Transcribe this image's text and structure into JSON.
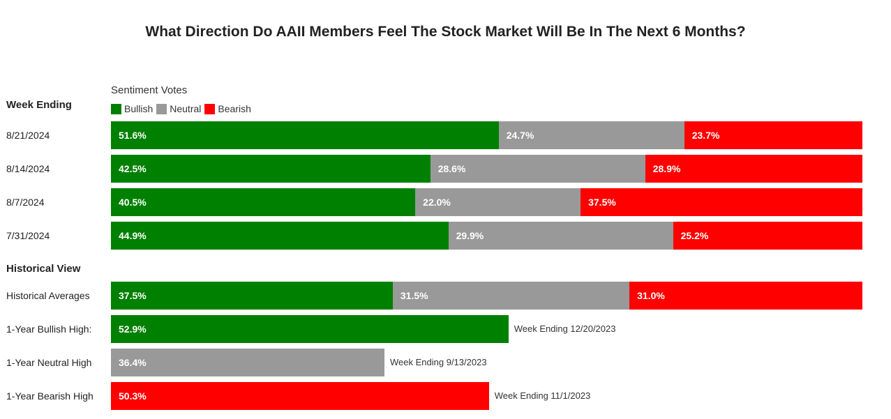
{
  "title": "What Direction Do AAII Members Feel The Stock Market Will Be In The Next 6 Months?",
  "section_week": "Week Ending",
  "section_hist": "Historical View",
  "legend": {
    "title": "Sentiment Votes",
    "items": [
      "Bullish",
      "Neutral",
      "Bearish"
    ]
  },
  "colors": {
    "bullish": "#008000",
    "neutral": "#999999",
    "bearish": "#ff0000"
  },
  "chart_data": {
    "type": "bar",
    "orientation": "horizontal-stacked",
    "title": "What Direction Do AAII Members Feel The Stock Market Will Be In The Next 6 Months?",
    "series_names": [
      "Bullish",
      "Neutral",
      "Bearish"
    ],
    "weekly": [
      {
        "label": "8/21/2024",
        "values": [
          51.6,
          24.7,
          23.7
        ],
        "texts": [
          "51.6%",
          "24.7%",
          "23.7%"
        ]
      },
      {
        "label": "8/14/2024",
        "values": [
          42.5,
          28.6,
          28.9
        ],
        "texts": [
          "42.5%",
          "28.6%",
          "28.9%"
        ]
      },
      {
        "label": "8/7/2024",
        "values": [
          40.5,
          22.0,
          37.5
        ],
        "texts": [
          "40.5%",
          "22.0%",
          "37.5%"
        ]
      },
      {
        "label": "7/31/2024",
        "values": [
          44.9,
          29.9,
          25.2
        ],
        "texts": [
          "44.9%",
          "29.9%",
          "25.2%"
        ]
      }
    ],
    "historical_average": {
      "label": "Historical Averages",
      "values": [
        37.5,
        31.5,
        31.0
      ],
      "texts": [
        "37.5%",
        "31.5%",
        "31.0%"
      ]
    },
    "highs": [
      {
        "label": "1-Year Bullish High:",
        "series": "bullish",
        "value": 52.9,
        "text": "52.9%",
        "note": "Week Ending 12/20/2023"
      },
      {
        "label": "1-Year Neutral High",
        "series": "neutral",
        "value": 36.4,
        "text": "36.4%",
        "note": "Week Ending 9/13/2023"
      },
      {
        "label": "1-Year Bearish High",
        "series": "bearish",
        "value": 50.3,
        "text": "50.3%",
        "note": "Week Ending 11/1/2023"
      }
    ],
    "xlim": [
      0,
      100
    ]
  }
}
